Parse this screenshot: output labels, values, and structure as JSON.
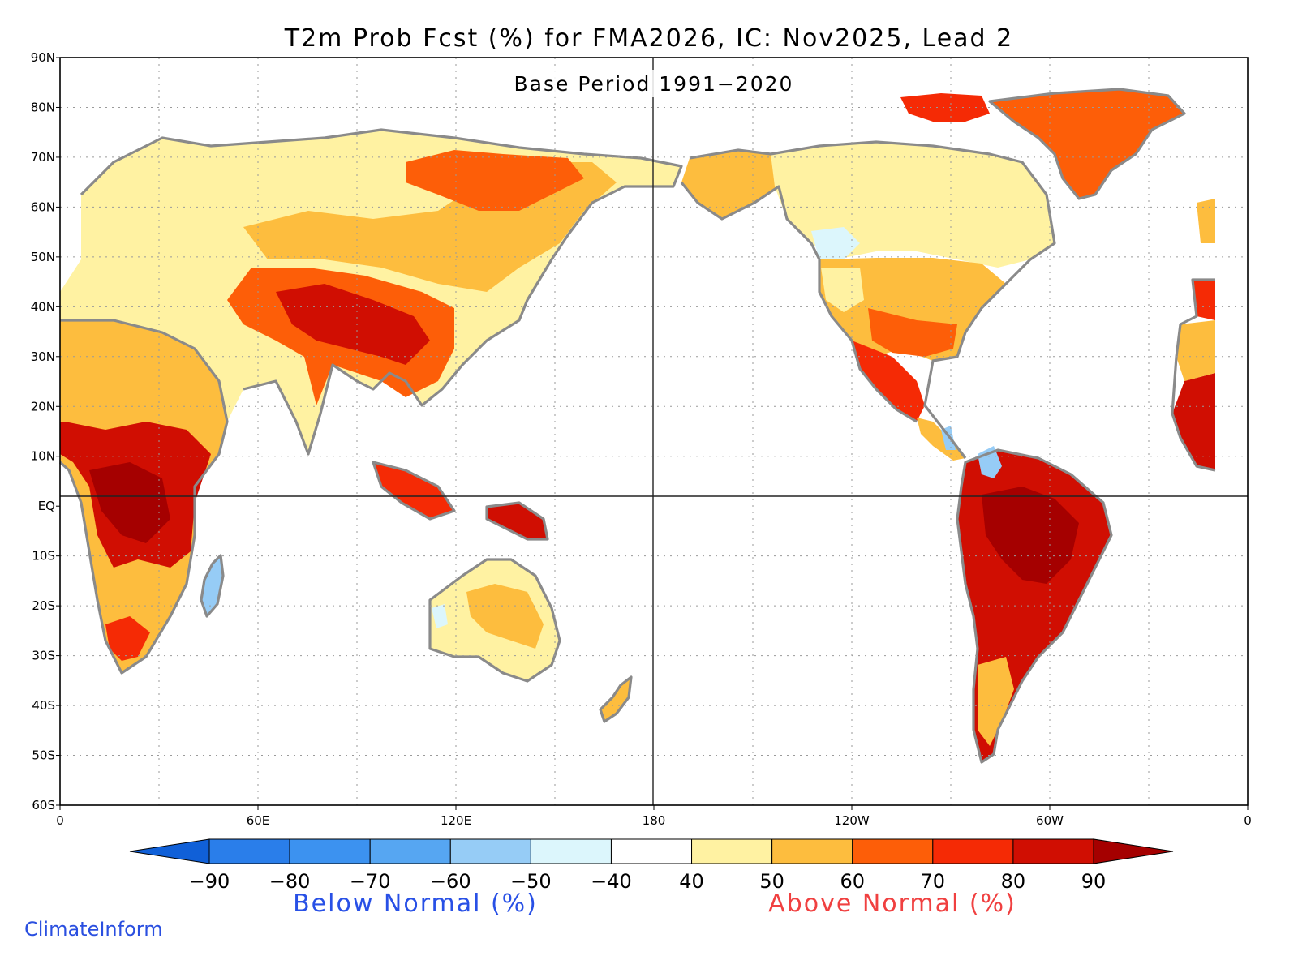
{
  "title": "T2m Prob Fcst (%) for FMA2026, IC: Nov2025, Lead 2",
  "subtitle": "Base Period 1991−2020",
  "credit": "ClimateInform",
  "lat_labels": [
    "90N",
    "80N",
    "70N",
    "60N",
    "50N",
    "40N",
    "30N",
    "20N",
    "10N",
    "EQ",
    "10S",
    "20S",
    "30S",
    "40S",
    "50S",
    "60S"
  ],
  "lon_labels": [
    "0",
    "60E",
    "120E",
    "180",
    "120W",
    "60W",
    "0"
  ],
  "colorbar": {
    "ticks": [
      "−90",
      "−80",
      "−70",
      "−60",
      "−50",
      "−40",
      "40",
      "50",
      "60",
      "70",
      "80",
      "90"
    ],
    "colors": [
      "#1060d8",
      "#2a7eea",
      "#3c92f0",
      "#56a6f2",
      "#96ccf6",
      "#dcf6fc",
      "#ffffff",
      "#fff2a2",
      "#fdbd3e",
      "#fd5e08",
      "#f52a05",
      "#d00e02",
      "#a50000"
    ]
  },
  "legend": {
    "below_label": "Below Normal (%)",
    "above_label": "Above Normal (%)",
    "below_color": "#2850e6",
    "above_color": "#f04040"
  }
}
